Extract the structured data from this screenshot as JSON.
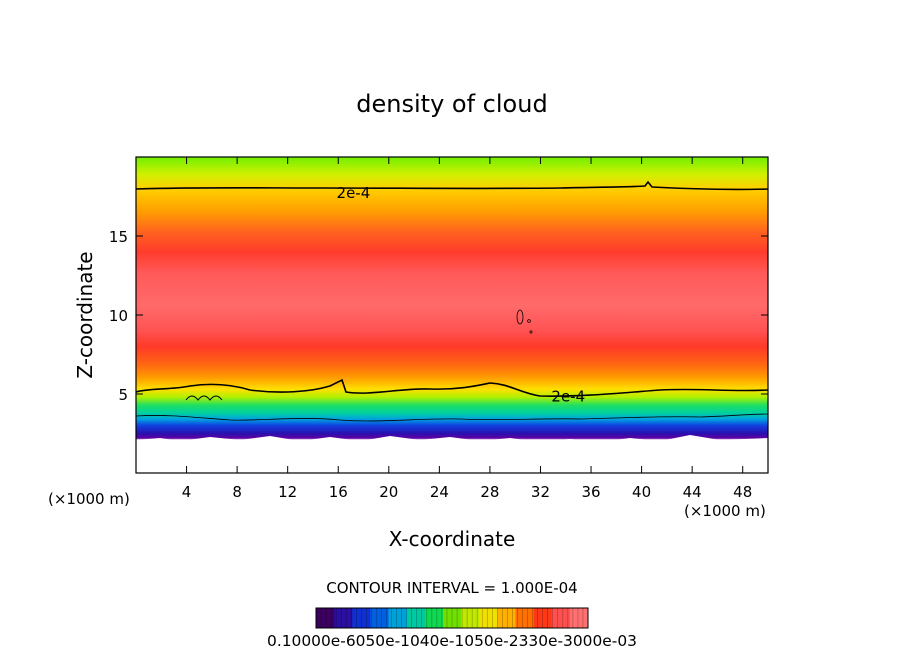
{
  "chart_data": {
    "type": "heatmap",
    "title": "density of cloud",
    "xlabel": "X-coordinate",
    "ylabel": "Z-coordinate",
    "x_unit_left": "(×1000 m)",
    "x_unit_right": "(×1000 m)",
    "xlim": [
      0,
      50
    ],
    "ylim": [
      0,
      20
    ],
    "x_ticks": [
      4,
      8,
      12,
      16,
      20,
      24,
      28,
      32,
      36,
      40,
      44,
      48
    ],
    "y_ticks": [
      5,
      10,
      15
    ],
    "contour_interval_text": "CONTOUR INTERVAL = 1.000E-04",
    "contour_labels": [
      {
        "text": "2e-4",
        "x": 17.2,
        "z": 17.8
      },
      {
        "text": "2e-4",
        "x": 34.2,
        "z": 4.9
      }
    ],
    "colorbar_labels_text": "0.10000e-6050e-1040e-1050e-2330e-3000e-03",
    "colorbar_colors": [
      "#3b0060",
      "#2a0fa0",
      "#1030d0",
      "#0060e0",
      "#00a0d8",
      "#00c8a0",
      "#10d850",
      "#70e000",
      "#c0e800",
      "#f0e000",
      "#ffb000",
      "#ff7000",
      "#ff3818",
      "#ff5050",
      "#ff7070"
    ],
    "field_colors": {
      "top": "#80f000",
      "upper_mid": "#ffd000",
      "core": "#ff4848",
      "core_light": "#ff6a6a",
      "lower": "#ff8800",
      "base_green": "#20e070",
      "base_blue": "#1040e0",
      "base_purple": "#6000a0"
    }
  }
}
